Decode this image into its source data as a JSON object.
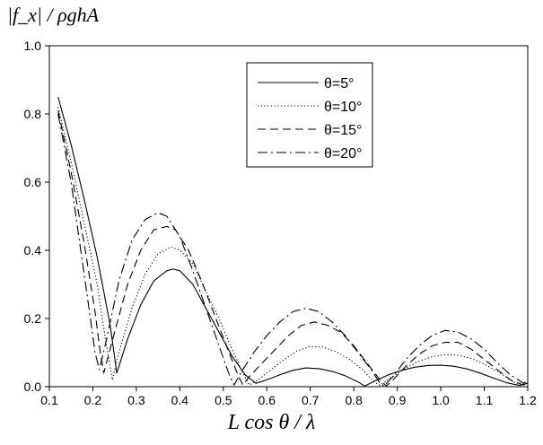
{
  "chart_data": {
    "type": "line",
    "ylabel": "|f_x| / ρghA",
    "xlabel": "L cos θ / λ",
    "xlim": [
      0.1,
      1.2
    ],
    "ylim": [
      0.0,
      1.0
    ],
    "xticks": [
      "0.1",
      "0.2",
      "0.3",
      "0.4",
      "0.5",
      "0.6",
      "0.7",
      "0.8",
      "0.9",
      "1.0",
      "1.1",
      "1.2"
    ],
    "yticks": [
      "0.0",
      "0.2",
      "0.4",
      "0.6",
      "0.8",
      "1.0"
    ],
    "grid": false,
    "legend_position": "top-right",
    "series": [
      {
        "name": "θ=5°",
        "style": "solid",
        "x": [
          0.12,
          0.15,
          0.18,
          0.21,
          0.24,
          0.255,
          0.28,
          0.31,
          0.34,
          0.37,
          0.385,
          0.4,
          0.43,
          0.46,
          0.49,
          0.52,
          0.55,
          0.575,
          0.6,
          0.63,
          0.66,
          0.69,
          0.72,
          0.75,
          0.78,
          0.81,
          0.825,
          0.85,
          0.88,
          0.91,
          0.94,
          0.97,
          1.0,
          1.03,
          1.06,
          1.09,
          1.12,
          1.15,
          1.18,
          1.2
        ],
        "y": [
          0.85,
          0.71,
          0.55,
          0.38,
          0.18,
          0.04,
          0.14,
          0.24,
          0.31,
          0.34,
          0.345,
          0.34,
          0.3,
          0.23,
          0.16,
          0.09,
          0.035,
          0.01,
          0.02,
          0.035,
          0.048,
          0.055,
          0.053,
          0.045,
          0.032,
          0.014,
          0.002,
          0.018,
          0.035,
          0.048,
          0.057,
          0.062,
          0.063,
          0.06,
          0.052,
          0.04,
          0.026,
          0.012,
          0.004,
          0.01
        ]
      },
      {
        "name": "θ=10°",
        "style": "dotted",
        "x": [
          0.12,
          0.15,
          0.18,
          0.21,
          0.23,
          0.245,
          0.26,
          0.29,
          0.32,
          0.35,
          0.38,
          0.4,
          0.43,
          0.46,
          0.49,
          0.52,
          0.545,
          0.56,
          0.58,
          0.61,
          0.64,
          0.67,
          0.7,
          0.73,
          0.76,
          0.79,
          0.82,
          0.845,
          0.86,
          0.89,
          0.92,
          0.95,
          0.98,
          1.01,
          1.04,
          1.07,
          1.1,
          1.13,
          1.16,
          1.185,
          1.2
        ],
        "y": [
          0.82,
          0.66,
          0.48,
          0.3,
          0.13,
          0.02,
          0.1,
          0.23,
          0.33,
          0.39,
          0.41,
          0.4,
          0.36,
          0.28,
          0.2,
          0.11,
          0.04,
          0.005,
          0.02,
          0.05,
          0.08,
          0.105,
          0.118,
          0.116,
          0.102,
          0.08,
          0.05,
          0.015,
          0.004,
          0.03,
          0.055,
          0.075,
          0.088,
          0.094,
          0.092,
          0.083,
          0.066,
          0.045,
          0.02,
          0.002,
          0.015
        ]
      },
      {
        "name": "θ=15°",
        "style": "dashed",
        "x": [
          0.12,
          0.15,
          0.18,
          0.205,
          0.215,
          0.225,
          0.25,
          0.28,
          0.31,
          0.34,
          0.37,
          0.39,
          0.42,
          0.45,
          0.48,
          0.51,
          0.535,
          0.545,
          0.56,
          0.59,
          0.62,
          0.65,
          0.68,
          0.71,
          0.74,
          0.77,
          0.8,
          0.83,
          0.86,
          0.875,
          0.89,
          0.92,
          0.95,
          0.98,
          1.01,
          1.04,
          1.07,
          1.1,
          1.13,
          1.16,
          1.19,
          1.2
        ],
        "y": [
          0.81,
          0.63,
          0.42,
          0.22,
          0.12,
          0.04,
          0.16,
          0.3,
          0.4,
          0.46,
          0.47,
          0.46,
          0.4,
          0.31,
          0.21,
          0.11,
          0.03,
          0.005,
          0.03,
          0.07,
          0.11,
          0.15,
          0.18,
          0.19,
          0.18,
          0.16,
          0.12,
          0.07,
          0.02,
          0.002,
          0.02,
          0.06,
          0.095,
          0.12,
          0.13,
          0.13,
          0.11,
          0.08,
          0.05,
          0.02,
          0.005,
          0.01
        ]
      },
      {
        "name": "θ=20°",
        "style": "dashdot",
        "x": [
          0.12,
          0.15,
          0.17,
          0.19,
          0.205,
          0.215,
          0.23,
          0.26,
          0.29,
          0.32,
          0.35,
          0.37,
          0.4,
          0.43,
          0.46,
          0.49,
          0.515,
          0.525,
          0.54,
          0.57,
          0.6,
          0.63,
          0.66,
          0.69,
          0.72,
          0.75,
          0.78,
          0.81,
          0.84,
          0.86,
          0.87,
          0.89,
          0.92,
          0.95,
          0.98,
          1.01,
          1.04,
          1.07,
          1.1,
          1.13,
          1.16,
          1.19,
          1.2
        ],
        "y": [
          0.8,
          0.6,
          0.42,
          0.24,
          0.1,
          0.05,
          0.13,
          0.31,
          0.43,
          0.49,
          0.51,
          0.5,
          0.44,
          0.34,
          0.23,
          0.12,
          0.03,
          0.005,
          0.04,
          0.1,
          0.15,
          0.19,
          0.22,
          0.23,
          0.22,
          0.19,
          0.15,
          0.1,
          0.05,
          0.01,
          0.002,
          0.03,
          0.08,
          0.12,
          0.15,
          0.165,
          0.16,
          0.14,
          0.11,
          0.07,
          0.035,
          0.01,
          0.02
        ]
      }
    ]
  }
}
